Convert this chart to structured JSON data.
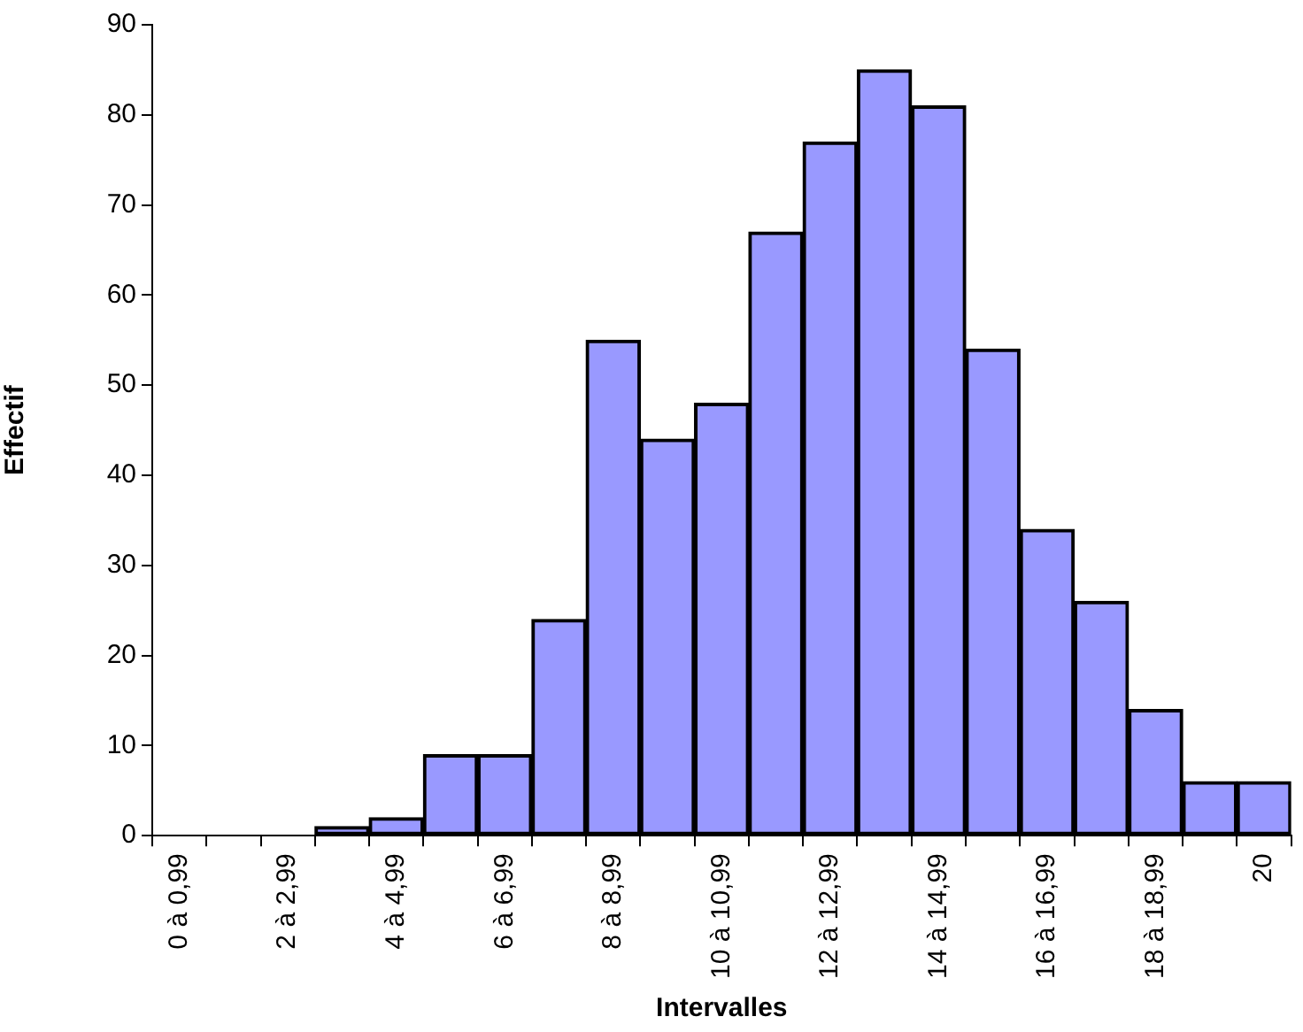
{
  "chart_data": {
    "type": "bar",
    "xlabel": "Intervalles",
    "ylabel": "Effectif",
    "categories": [
      "0 à 0,99",
      null,
      "2 à 2,99",
      null,
      "4 à 4,99",
      null,
      "6 à 6,99",
      null,
      "8 à 8,99",
      null,
      "10 à 10,99",
      null,
      "12 à 12,99",
      null,
      "14 à 14,99",
      null,
      "16 à 16,99",
      null,
      "18 à 18,99",
      null,
      "20"
    ],
    "values": [
      0,
      0,
      0,
      1,
      2,
      9,
      9,
      24,
      55,
      44,
      48,
      67,
      77,
      85,
      81,
      54,
      34,
      26,
      14,
      6,
      6
    ],
    "color": "#9999ff",
    "ylim": [
      0,
      90
    ],
    "yticks": [
      0,
      10,
      20,
      30,
      40,
      50,
      60,
      70,
      80,
      90
    ],
    "grid": false,
    "legend": false
  }
}
